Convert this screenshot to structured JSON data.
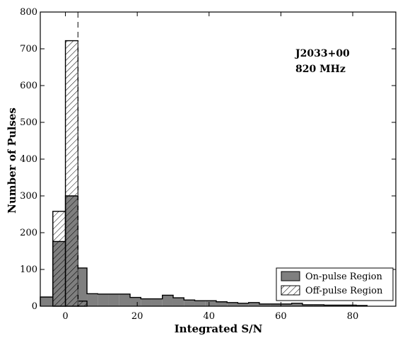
{
  "chart_data": {
    "type": "bar",
    "xlabel": "Integrated S/N",
    "ylabel": "Number of Pulses",
    "xlim": [
      -7,
      92
    ],
    "ylim": [
      0,
      800
    ],
    "x_ticks": [
      0,
      20,
      40,
      60,
      80
    ],
    "y_ticks": [
      0,
      100,
      200,
      300,
      400,
      500,
      600,
      700,
      800
    ],
    "bin_edges": [
      -7,
      -3.5,
      0,
      3.5,
      6,
      9,
      12,
      15,
      18,
      21,
      24,
      27,
      30,
      33,
      36,
      39,
      42,
      45,
      48,
      51,
      54,
      57,
      60,
      63,
      66,
      69,
      72,
      75,
      78,
      81,
      84
    ],
    "series": [
      {
        "name": "On-pulse Region",
        "style": "filled",
        "color": "#7f7f7f",
        "values": [
          25,
          176,
          300,
          104,
          34,
          33,
          33,
          33,
          24,
          20,
          20,
          30,
          23,
          17,
          15,
          15,
          12,
          10,
          8,
          10,
          6,
          6,
          6,
          8,
          4,
          4,
          3,
          3,
          3,
          2
        ]
      },
      {
        "name": "Off-pulse Region",
        "style": "hatched",
        "color": "#000000",
        "edges": [
          -3.5,
          0,
          3.5,
          6
        ],
        "values": [
          258,
          722,
          14
        ]
      }
    ],
    "vline": {
      "x": 3.5,
      "style": "dashed"
    },
    "annotations": [
      "J2033+00",
      "820 MHz"
    ],
    "legend_position": "bottom-right"
  }
}
